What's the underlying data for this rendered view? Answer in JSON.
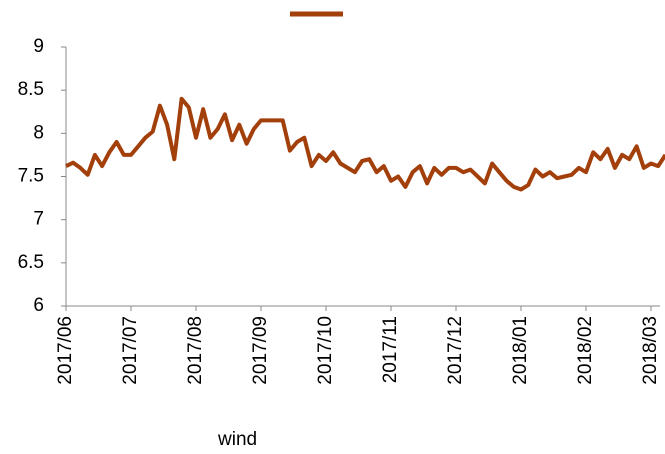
{
  "chart_data": {
    "type": "line",
    "categories": [
      "2017/06",
      null,
      null,
      null,
      null,
      null,
      null,
      null,
      null,
      "2017/07",
      null,
      null,
      null,
      null,
      null,
      null,
      null,
      null,
      "2017/08",
      null,
      null,
      null,
      null,
      null,
      null,
      null,
      null,
      "2017/09",
      null,
      null,
      null,
      null,
      null,
      null,
      null,
      null,
      "2017/10",
      null,
      null,
      null,
      null,
      null,
      null,
      null,
      null,
      "2017/11",
      null,
      null,
      null,
      null,
      null,
      null,
      null,
      null,
      "2017/12",
      null,
      null,
      null,
      null,
      null,
      null,
      null,
      null,
      "2018/01",
      null,
      null,
      null,
      null,
      null,
      null,
      null,
      null,
      "2018/02",
      null,
      null,
      null,
      null,
      null,
      null,
      null,
      null,
      "2018/03",
      null,
      null
    ],
    "series": [
      {
        "color": "#a23f0a",
        "values": [
          7.62,
          7.66,
          7.6,
          7.52,
          7.75,
          7.62,
          7.78,
          7.9,
          7.75,
          7.75,
          7.85,
          7.95,
          8.02,
          8.32,
          8.1,
          7.7,
          8.4,
          8.3,
          7.95,
          8.28,
          7.95,
          8.05,
          8.22,
          7.92,
          8.1,
          7.88,
          8.05,
          8.15,
          8.15,
          8.15,
          8.15,
          7.8,
          7.9,
          7.95,
          7.62,
          7.75,
          7.68,
          7.78,
          7.65,
          7.6,
          7.55,
          7.68,
          7.7,
          7.55,
          7.62,
          7.45,
          7.5,
          7.38,
          7.55,
          7.62,
          7.42,
          7.6,
          7.52,
          7.6,
          7.6,
          7.55,
          7.58,
          7.5,
          7.42,
          7.65,
          7.55,
          7.45,
          7.38,
          7.35,
          7.4,
          7.58,
          7.5,
          7.55,
          7.48,
          7.5,
          7.52,
          7.6,
          7.55,
          7.78,
          7.7,
          7.82,
          7.6,
          7.75,
          7.7,
          7.85,
          7.6,
          7.65,
          7.62,
          7.75
        ]
      }
    ],
    "ylim": [
      6,
      9
    ],
    "yticks": [
      6,
      6.5,
      7,
      7.5,
      8,
      8.5,
      9
    ],
    "legend": "top",
    "source": "wind"
  }
}
